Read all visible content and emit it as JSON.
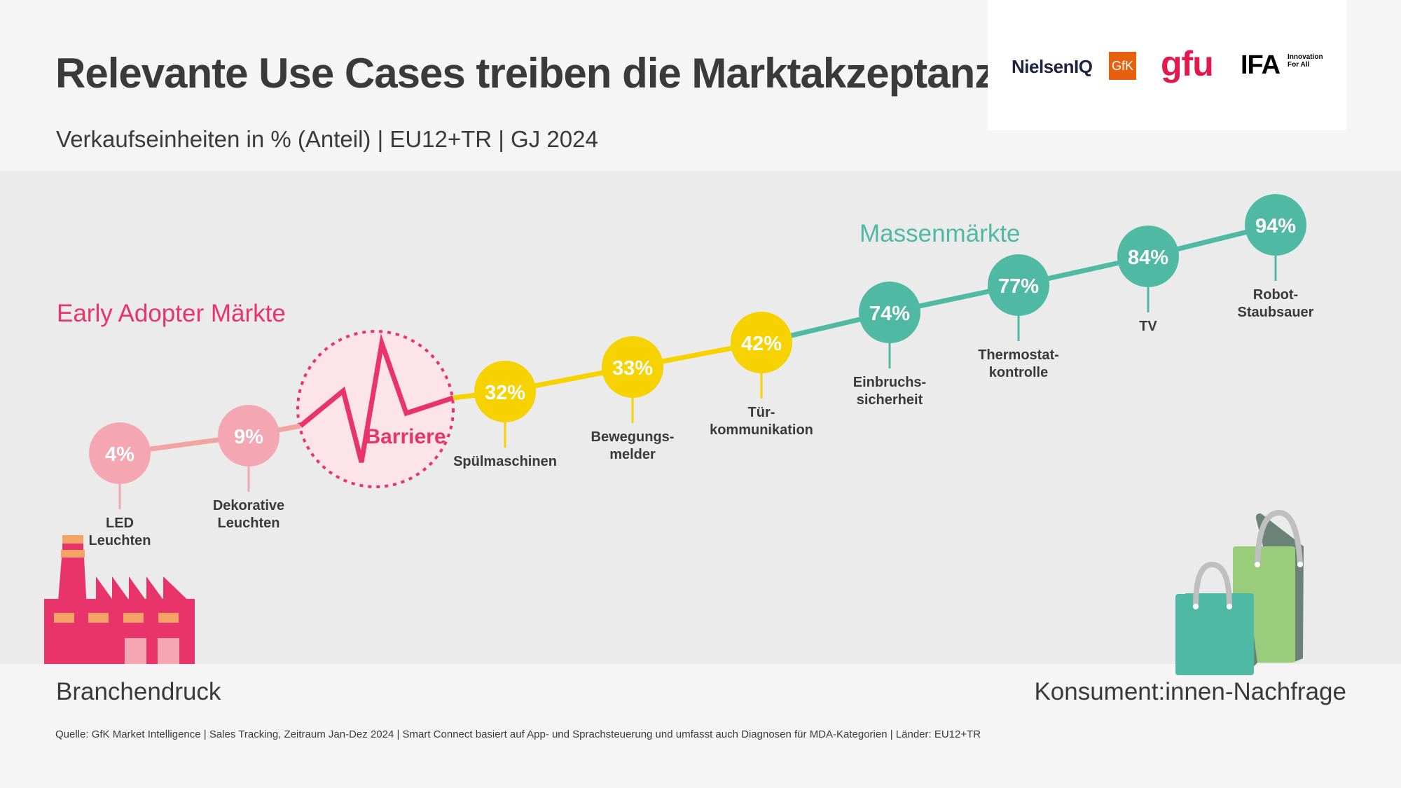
{
  "header": {
    "title": "Relevante Use Cases treiben die Marktakzeptanz",
    "subtitle": "Verkaufseinheiten in % (Anteil) | EU12+TR | GJ 2024"
  },
  "logos": {
    "nielsen": "NielsenIQ",
    "gfk": "GfK",
    "gfu": "gfu",
    "ifa": "IFA",
    "ifa_tagline_1": "Innovation",
    "ifa_tagline_2": "For All"
  },
  "sections": {
    "early_adopter": "Early Adopter Märkte",
    "mass_market": "Massenmärkte",
    "barrier": "Barriere"
  },
  "colors": {
    "early": "#f4a7b3",
    "early_line": "#f3a3a0",
    "barrier": "#e8346a",
    "barrier_fill": "#fce4e9",
    "mid": "#f5d200",
    "mass": "#4fb9a4",
    "text": "#3a3a3a"
  },
  "chart_data": {
    "type": "line",
    "title": "Relevante Use Cases treiben die Marktakzeptanz",
    "subtitle": "Verkaufseinheiten in % (Anteil) | EU12+TR | GJ 2024",
    "xlabel": "",
    "ylabel": "",
    "ylim": [
      0,
      100
    ],
    "unit": "%",
    "categories": [
      "LED Leuchten",
      "Dekorative Leuchten",
      "Spülmaschinen",
      "Bewegungsmelder",
      "Türkommunikation",
      "Einbruchssicherheit",
      "Thermostatkontrolle",
      "TV",
      "Robot-Staubsauger"
    ],
    "points": [
      {
        "label_lines": [
          "LED",
          "Leuchten"
        ],
        "value": 4,
        "value_label": "4%",
        "group": "early"
      },
      {
        "label_lines": [
          "Dekorative",
          "Leuchten"
        ],
        "value": 9,
        "value_label": "9%",
        "group": "early"
      },
      {
        "label_lines": [
          "Spülmaschinen"
        ],
        "value": 32,
        "value_label": "32%",
        "group": "mid"
      },
      {
        "label_lines": [
          "Bewegungs-",
          "melder"
        ],
        "value": 33,
        "value_label": "33%",
        "group": "mid"
      },
      {
        "label_lines": [
          "Tür-",
          "kommunikation"
        ],
        "value": 42,
        "value_label": "42%",
        "group": "mid"
      },
      {
        "label_lines": [
          "Einbruchs-",
          "sicherheit"
        ],
        "value": 74,
        "value_label": "74%",
        "group": "mass"
      },
      {
        "label_lines": [
          "Thermostat-",
          "kontrolle"
        ],
        "value": 77,
        "value_label": "77%",
        "group": "mass"
      },
      {
        "label_lines": [
          "TV"
        ],
        "value": 84,
        "value_label": "84%",
        "group": "mass"
      },
      {
        "label_lines": [
          "Robot-",
          "Staubsauer"
        ],
        "value": 94,
        "value_label": "94%",
        "group": "mass"
      }
    ],
    "annotations": [
      "Early Adopter Märkte",
      "Barriere",
      "Massenmärkte"
    ],
    "axes_left": "Branchendruck",
    "axes_right": "Konsument:innen-Nachfrage",
    "grid": false,
    "legend": "none"
  },
  "footer": {
    "left": "Branchendruck",
    "right": "Konsument:innen-Nachfrage",
    "source": "Quelle: GfK Market Intelligence | Sales Tracking, Zeitraum Jan-Dez 2024 | Smart Connect basiert auf App- und Sprachsteuerung und umfasst auch Diagnosen für MDA-Kategorien | Länder: EU12+TR"
  }
}
